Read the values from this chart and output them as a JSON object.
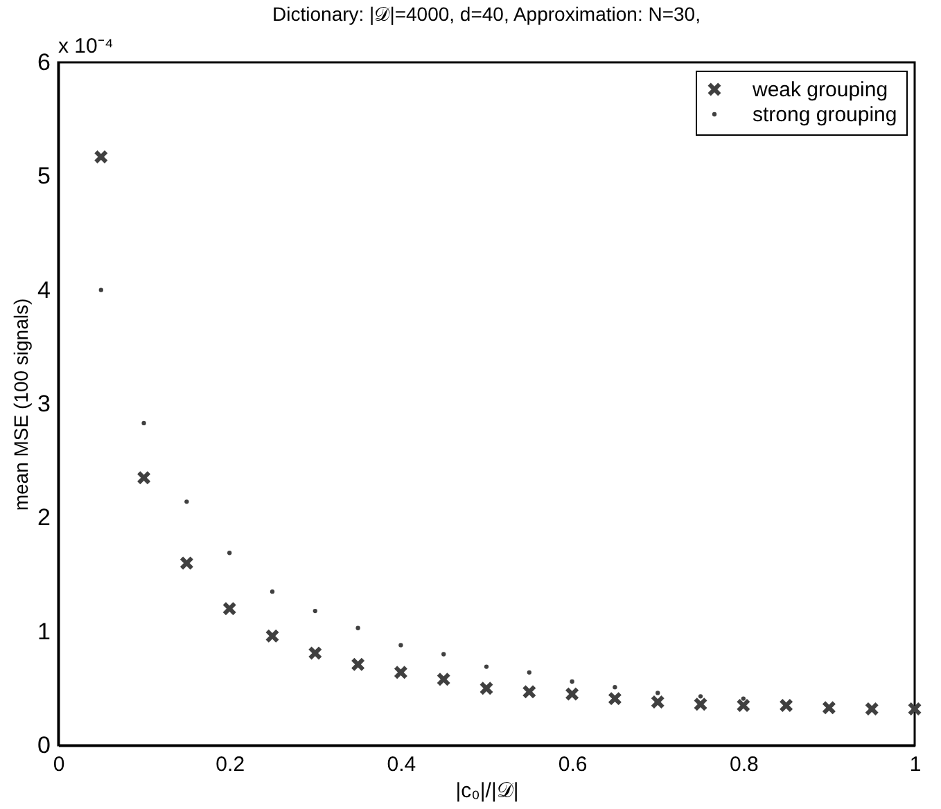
{
  "chart_data": {
    "type": "scatter",
    "title": "Dictionary: |𝒟|=4000, d=40, Approximation: N=30,",
    "xlabel": "|c₀|/|𝒟|",
    "ylabel": "mean MSE (100 signals)",
    "annotations": [
      "x 10⁻⁴"
    ],
    "x": [
      0.05,
      0.1,
      0.15,
      0.2,
      0.25,
      0.3,
      0.35,
      0.4,
      0.45,
      0.5,
      0.55,
      0.6,
      0.65,
      0.7,
      0.75,
      0.8,
      0.85,
      0.9,
      0.95,
      1.0
    ],
    "series": [
      {
        "name": "weak grouping",
        "color": "#404040",
        "marker": "cross",
        "values": [
          5.17,
          2.35,
          1.6,
          1.2,
          0.96,
          0.81,
          0.71,
          0.64,
          0.58,
          0.5,
          0.47,
          0.45,
          0.41,
          0.38,
          0.36,
          0.35,
          0.35,
          0.33,
          0.32,
          0.32
        ]
      },
      {
        "name": "strong grouping",
        "color": "#404040",
        "marker": "circle",
        "values": [
          4.0,
          2.83,
          2.14,
          1.69,
          1.35,
          1.18,
          1.03,
          0.88,
          0.8,
          0.69,
          0.64,
          0.56,
          0.51,
          0.46,
          0.43,
          0.41,
          null,
          null,
          null,
          null
        ]
      }
    ],
    "xlim": [
      0,
      1
    ],
    "ylim": [
      0,
      6
    ],
    "xticks": [
      0,
      0.2,
      0.4,
      0.6,
      0.8,
      1
    ],
    "yticks": [
      0,
      1,
      2,
      3,
      4,
      5,
      6
    ],
    "grid": false,
    "legend": "top right"
  }
}
